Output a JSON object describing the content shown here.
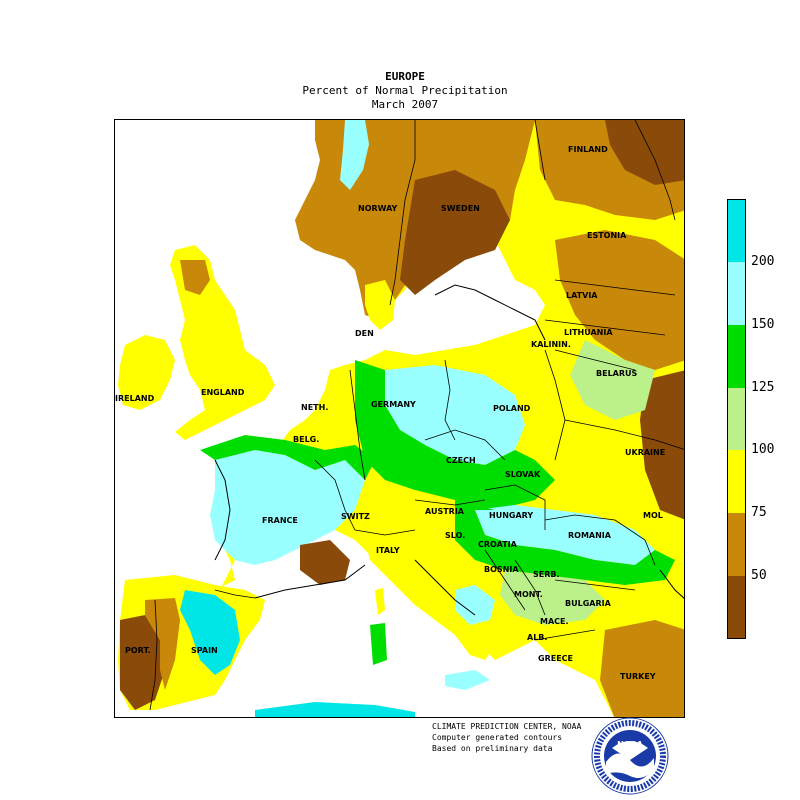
{
  "title": {
    "line1": "EUROPE",
    "line2": "Percent of Normal Precipitation",
    "line3": "March 2007"
  },
  "legend": {
    "ticks": [
      "200",
      "150",
      "125",
      "100",
      "75",
      "50"
    ],
    "bands": [
      {
        "color": "#00e5e5"
      },
      {
        "color": "#99ffff"
      },
      {
        "color": "#00dd00"
      },
      {
        "color": "#bbf08a"
      },
      {
        "color": "#ffff00"
      },
      {
        "color": "#c8880a"
      },
      {
        "color": "#8a4a0a"
      }
    ]
  },
  "countries": {
    "finland": "FINLAND",
    "norway": "NORWAY",
    "sweden": "SWEDEN",
    "estonia": "ESTONIA",
    "latvia": "LATVIA",
    "lithuania": "LITHUANIA",
    "kalinin": "KALININ.",
    "belarus": "BELARUS",
    "den": "DEN",
    "ireland": "IRELAND",
    "england": "ENGLAND",
    "neth": "NETH.",
    "belg": "BELG.",
    "germany": "GERMANY",
    "poland": "POLAND",
    "ukraine": "UKRAINE",
    "czech": "CZECH",
    "slovak": "SLOVAK",
    "mol": "MOL",
    "france": "FRANCE",
    "switz": "SWITZ",
    "austria": "AUSTRIA",
    "hungary": "HUNGARY",
    "romania": "ROMANIA",
    "slo": "SLO.",
    "croatia": "CROATIA",
    "italy": "ITALY",
    "bosnia": "BOSNIA",
    "serb": "SERB.",
    "mont": "MONT.",
    "bulgaria": "BULGARIA",
    "mace": "MACE.",
    "alb": "ALB.",
    "greece": "GREECE",
    "turkey": "TURKEY",
    "port": "PORT.",
    "spain": "SPAIN"
  },
  "credits": {
    "line1": "CLIMATE PREDICTION CENTER, NOAA",
    "line2": "Computer generated contours",
    "line3": "Based on preliminary data"
  },
  "logo": {
    "text": "NOAA"
  }
}
